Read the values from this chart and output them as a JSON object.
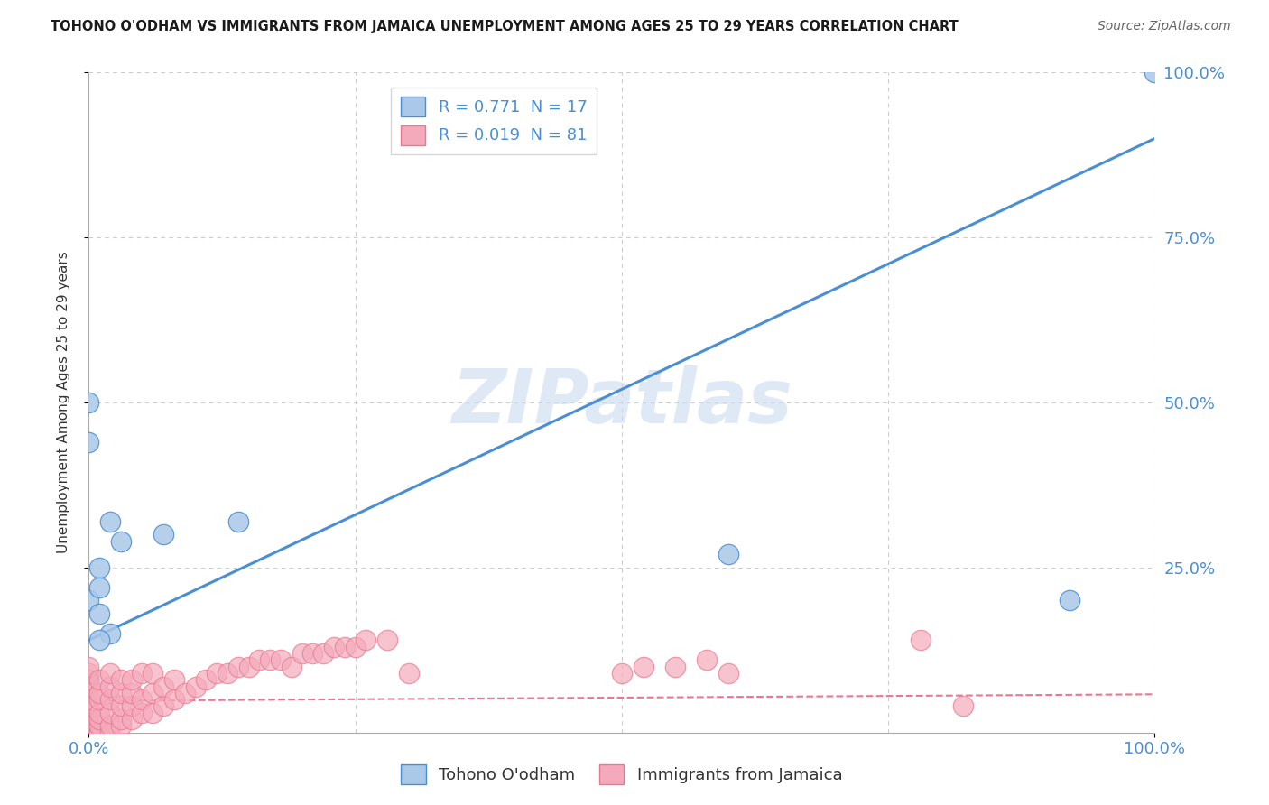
{
  "title": "TOHONO O'ODHAM VS IMMIGRANTS FROM JAMAICA UNEMPLOYMENT AMONG AGES 25 TO 29 YEARS CORRELATION CHART",
  "source": "Source: ZipAtlas.com",
  "ylabel": "Unemployment Among Ages 25 to 29 years",
  "xlim": [
    0,
    1.0
  ],
  "ylim": [
    0,
    1.0
  ],
  "ytick_positions": [
    0.25,
    0.5,
    0.75,
    1.0
  ],
  "ytick_labels": [
    "25.0%",
    "50.0%",
    "75.0%",
    "100.0%"
  ],
  "r_blue": 0.771,
  "n_blue": 17,
  "r_pink": 0.019,
  "n_pink": 81,
  "blue_color": "#aac8e8",
  "pink_color": "#f5aabb",
  "blue_line_color": "#4a8fd4",
  "pink_line_color": "#e87890",
  "grid_color": "#cccccc",
  "watermark": "ZIPatlas",
  "legend_label_blue": "Tohono O'odham",
  "legend_label_pink": "Immigrants from Jamaica",
  "blue_line_x0": 0.0,
  "blue_line_y0": 0.14,
  "blue_line_x1": 1.0,
  "blue_line_y1": 0.9,
  "pink_line_x0": 0.0,
  "pink_line_y0": 0.048,
  "pink_line_x1": 1.0,
  "pink_line_y1": 0.058,
  "blue_scatter_x": [
    0.0,
    0.0,
    0.0,
    0.01,
    0.01,
    0.02,
    0.03,
    0.07,
    0.14,
    0.6,
    0.92,
    1.0,
    0.0,
    0.01,
    0.02,
    0.01,
    0.0
  ],
  "blue_scatter_y": [
    0.5,
    0.44,
    0.2,
    0.25,
    0.18,
    0.32,
    0.29,
    0.3,
    0.32,
    0.27,
    0.2,
    1.0,
    0.08,
    0.22,
    0.15,
    0.14,
    0.0
  ],
  "pink_scatter_x": [
    0.0,
    0.0,
    0.0,
    0.0,
    0.0,
    0.0,
    0.0,
    0.0,
    0.0,
    0.0,
    0.0,
    0.0,
    0.0,
    0.0,
    0.0,
    0.0,
    0.0,
    0.0,
    0.0,
    0.0,
    0.01,
    0.01,
    0.01,
    0.01,
    0.01,
    0.01,
    0.01,
    0.01,
    0.01,
    0.02,
    0.02,
    0.02,
    0.02,
    0.02,
    0.02,
    0.03,
    0.03,
    0.03,
    0.03,
    0.03,
    0.04,
    0.04,
    0.04,
    0.04,
    0.05,
    0.05,
    0.05,
    0.06,
    0.06,
    0.06,
    0.07,
    0.07,
    0.08,
    0.08,
    0.09,
    0.1,
    0.11,
    0.12,
    0.13,
    0.14,
    0.15,
    0.16,
    0.17,
    0.18,
    0.19,
    0.2,
    0.21,
    0.22,
    0.23,
    0.24,
    0.25,
    0.26,
    0.28,
    0.3,
    0.5,
    0.52,
    0.55,
    0.58,
    0.6,
    0.78,
    0.82
  ],
  "pink_scatter_y": [
    0.0,
    0.0,
    0.0,
    0.0,
    0.0,
    0.0,
    0.0,
    0.01,
    0.02,
    0.03,
    0.04,
    0.05,
    0.06,
    0.07,
    0.08,
    0.09,
    0.1,
    0.04,
    0.02,
    0.01,
    0.0,
    0.0,
    0.0,
    0.01,
    0.02,
    0.03,
    0.05,
    0.06,
    0.08,
    0.0,
    0.01,
    0.03,
    0.05,
    0.07,
    0.09,
    0.01,
    0.02,
    0.04,
    0.06,
    0.08,
    0.02,
    0.04,
    0.06,
    0.08,
    0.03,
    0.05,
    0.09,
    0.03,
    0.06,
    0.09,
    0.04,
    0.07,
    0.05,
    0.08,
    0.06,
    0.07,
    0.08,
    0.09,
    0.09,
    0.1,
    0.1,
    0.11,
    0.11,
    0.11,
    0.1,
    0.12,
    0.12,
    0.12,
    0.13,
    0.13,
    0.13,
    0.14,
    0.14,
    0.09,
    0.09,
    0.1,
    0.1,
    0.11,
    0.09,
    0.14,
    0.04
  ]
}
